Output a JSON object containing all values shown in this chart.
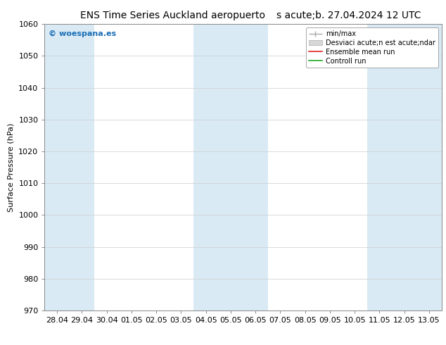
{
  "title_left": "ENS Time Series Auckland aeropuerto",
  "title_right": "s acute;b. 27.04.2024 12 UTC",
  "ylabel": "Surface Pressure (hPa)",
  "ylim": [
    970,
    1060
  ],
  "yticks": [
    970,
    980,
    990,
    1000,
    1010,
    1020,
    1030,
    1040,
    1050,
    1060
  ],
  "x_labels": [
    "28.04",
    "29.04",
    "30.04",
    "01.05",
    "02.05",
    "03.05",
    "04.05",
    "05.05",
    "06.05",
    "07.05",
    "08.05",
    "09.05",
    "10.05",
    "11.05",
    "12.05",
    "13.05"
  ],
  "x_values": [
    0,
    1,
    2,
    3,
    4,
    5,
    6,
    7,
    8,
    9,
    10,
    11,
    12,
    13,
    14,
    15
  ],
  "shaded_columns": [
    0,
    1,
    6,
    7,
    8,
    13,
    14,
    15
  ],
  "shaded_color": "#daeaf5",
  "watermark": "© woespana.es",
  "watermark_color": "#1a6eb5",
  "legend_item_1": "min/max",
  "legend_item_2": "Desviaci acute;n est acute;ndar",
  "legend_item_3": "Ensemble mean run",
  "legend_item_4": "Controll run",
  "legend_color_1": "#aaaaaa",
  "legend_color_2": "#cccccc",
  "legend_color_3": "#dd2222",
  "legend_color_4": "#22aa22",
  "background_color": "#ffffff",
  "grid_color": "#cccccc",
  "title_fontsize": 10,
  "axis_label_fontsize": 8,
  "tick_fontsize": 8,
  "legend_fontsize": 7
}
